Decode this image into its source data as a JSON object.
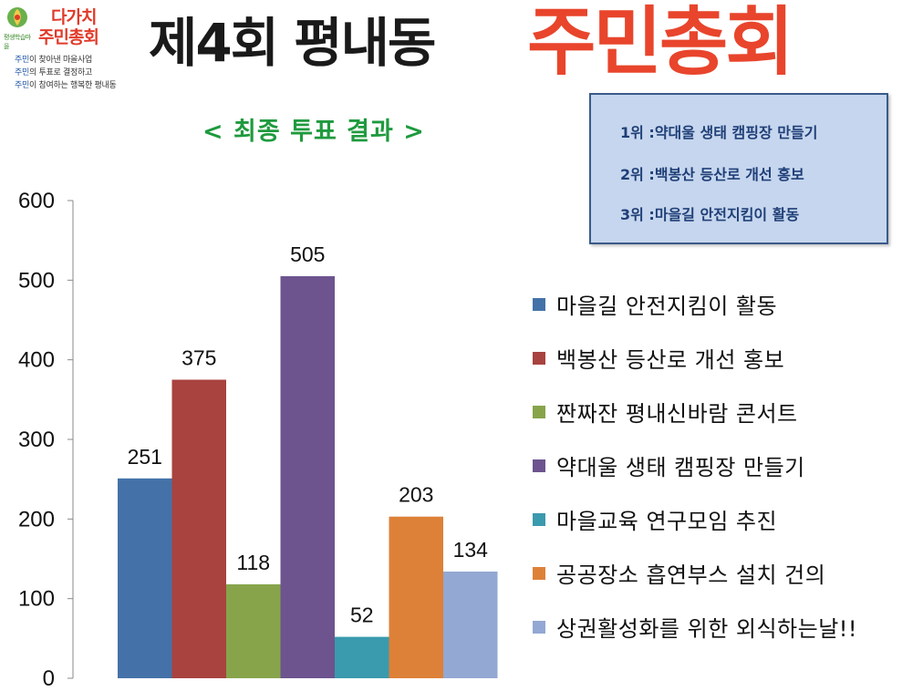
{
  "logo": {
    "brand": "평생학습마을",
    "title_line1": "다가치",
    "title_line2": "주민총회",
    "lines": [
      {
        "hl": "주민",
        "rest": "이 찾아낸 마을사업"
      },
      {
        "hl": "주민",
        "rest": "의 투표로 결정하고"
      },
      {
        "hl": "주민",
        "rest": "이 참여하는 행복한 평내동"
      }
    ]
  },
  "header": {
    "left": "제4회 평내동",
    "right": "주민총회"
  },
  "subtitle": "< 최종 투표 결과 >",
  "ranking": [
    "1위 :약대울 생태 캠핑장 만들기",
    "2위 :백봉산 등산로 개선 홍보",
    "3위 :마을길 안전지킴이 활동"
  ],
  "chart_data": {
    "type": "bar",
    "title": "",
    "xlabel": "",
    "ylabel": "",
    "ylim": [
      0,
      600
    ],
    "yticks": [
      0,
      100,
      200,
      300,
      400,
      500,
      600
    ],
    "grid": false,
    "legend_position": "right",
    "series": [
      {
        "name": "마을길 안전지킴이 활동",
        "value": 251,
        "color": "#4472a8"
      },
      {
        "name": "백봉산 등산로 개선 홍보",
        "value": 375,
        "color": "#a8433f"
      },
      {
        "name": "짠짜잔 평내신바람 콘서트",
        "value": 118,
        "color": "#87a44b"
      },
      {
        "name": "약대울 생태 캠핑장 만들기",
        "value": 505,
        "color": "#6d548f"
      },
      {
        "name": "마을교육 연구모임 추진",
        "value": 52,
        "color": "#3a9aae"
      },
      {
        "name": "공공장소 흡연부스 설치 건의",
        "value": 203,
        "color": "#dd8138"
      },
      {
        "name": "상권활성화를 위한 외식하는날!!",
        "value": 134,
        "color": "#93a8d2"
      }
    ]
  }
}
